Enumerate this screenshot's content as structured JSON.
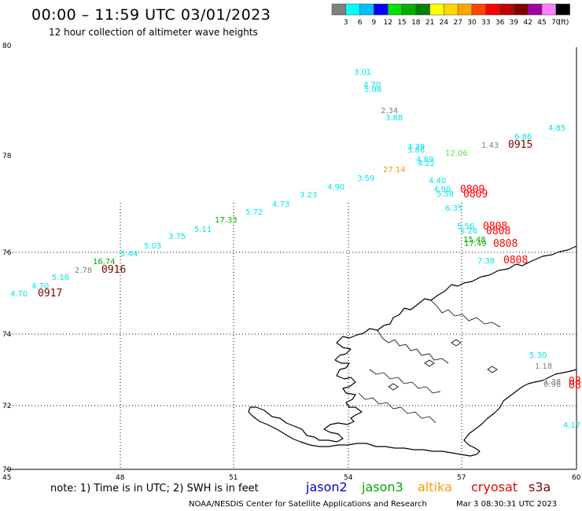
{
  "title": "00:00 – 11:59 UTC 03/01/2023",
  "subtitle": "12 hour collection of altimeter wave heights",
  "colorbar": {
    "labels": [
      "3",
      "6",
      "9",
      "12",
      "15",
      "18",
      "21",
      "24",
      "27",
      "30",
      "33",
      "36",
      "39",
      "42",
      "45",
      "70",
      "(ft)"
    ],
    "colors": [
      "#7f7f7f",
      "#00ffff",
      "#00bfff",
      "#0000ff",
      "#00e000",
      "#00b000",
      "#008000",
      "#ffff00",
      "#ffd700",
      "#ffa500",
      "#ff4500",
      "#ff0000",
      "#c00000",
      "#800000",
      "#a000a0",
      "#ff80ff",
      "#000000"
    ]
  },
  "axes": {
    "lon_labels": [
      "45",
      "48",
      "51",
      "54",
      "57",
      "60"
    ],
    "lat_labels": [
      "80",
      "78",
      "76",
      "74",
      "72",
      "70"
    ]
  },
  "wave_heights": [
    {
      "text": "3.01",
      "color": "#00e5ee"
    },
    {
      "text": "4.70",
      "color": "#00e5ee"
    },
    {
      "text": "5.08",
      "color": "#00e5ee"
    },
    {
      "text": "2.34",
      "color": "#808080"
    },
    {
      "text": "3.88",
      "color": "#00e5ee"
    },
    {
      "text": "4.85",
      "color": "#00e5ee"
    },
    {
      "text": "6.86",
      "color": "#00e5ee"
    },
    {
      "text": "1.43",
      "color": "#808080"
    },
    {
      "text": "3.39",
      "color": "#00e5ee"
    },
    {
      "text": "3.86",
      "color": "#00e5ee"
    },
    {
      "text": "4.89",
      "color": "#00e5ee"
    },
    {
      "text": "4.22",
      "color": "#00e5ee"
    },
    {
      "text": "12.06",
      "color": "#66dd44"
    },
    {
      "text": "27.14",
      "color": "#ff9900"
    },
    {
      "text": "4.40",
      "color": "#00e5ee"
    },
    {
      "text": "3.59",
      "color": "#00e5ee"
    },
    {
      "text": "4.90",
      "color": "#00e5ee"
    },
    {
      "text": "4.90",
      "color": "#00e5ee"
    },
    {
      "text": "5.58",
      "color": "#00e5ee"
    },
    {
      "text": "3.23",
      "color": "#00e5ee"
    },
    {
      "text": "4.73",
      "color": "#00e5ee"
    },
    {
      "text": "5.72",
      "color": "#00e5ee"
    },
    {
      "text": "6.35",
      "color": "#00e5ee"
    },
    {
      "text": "17.33",
      "color": "#00aa00"
    },
    {
      "text": "5.11",
      "color": "#00e5ee"
    },
    {
      "text": "3.75",
      "color": "#00e5ee"
    },
    {
      "text": "5.03",
      "color": "#00e5ee"
    },
    {
      "text": "5.56",
      "color": "#00e5ee"
    },
    {
      "text": "5.26",
      "color": "#00e5ee"
    },
    {
      "text": "15.48",
      "color": "#00aa00"
    },
    {
      "text": "17.49",
      "color": "#00aa00"
    },
    {
      "text": "5.44",
      "color": "#00e5ee"
    },
    {
      "text": "16.74",
      "color": "#00aa00"
    },
    {
      "text": "7.38",
      "color": "#00e5ee"
    },
    {
      "text": "2.78",
      "color": "#808080"
    },
    {
      "text": "5.16",
      "color": "#00e5ee"
    },
    {
      "text": "4.70",
      "color": "#00e5ee"
    },
    {
      "text": "4.70",
      "color": "#00e5ee"
    },
    {
      "text": "5.30",
      "color": "#00e5ee"
    },
    {
      "text": "1.18",
      "color": "#808080"
    },
    {
      "text": "1.38",
      "color": "#808080"
    },
    {
      "text": "0.98",
      "color": "#808080"
    },
    {
      "text": "4.17",
      "color": "#00e5ee"
    }
  ],
  "pass_times": [
    {
      "text": "0915",
      "color": "#800000"
    },
    {
      "text": "0809",
      "color": "#ff0000"
    },
    {
      "text": "0809",
      "color": "#ff0000"
    },
    {
      "text": "0808",
      "color": "#ff0000"
    },
    {
      "text": "0808",
      "color": "#ff0000"
    },
    {
      "text": "0808",
      "color": "#ff0000"
    },
    {
      "text": "0808",
      "color": "#ff0000"
    },
    {
      "text": "0916",
      "color": "#800000"
    },
    {
      "text": "0917",
      "color": "#800000"
    },
    {
      "text": "08",
      "color": "#ff0000"
    },
    {
      "text": "08",
      "color": "#ff0000"
    }
  ],
  "note": "note: 1) Time is in UTC; 2) SWH is in feet",
  "legend": [
    {
      "text": "jason2",
      "color": "#0000dd"
    },
    {
      "text": "jason3",
      "color": "#00aa00"
    },
    {
      "text": "altika",
      "color": "#ff9900"
    },
    {
      "text": "cryosat",
      "color": "#ee0000"
    },
    {
      "text": "s3a",
      "color": "#880000"
    }
  ],
  "credit": "NOAA/NESDIS Center for Satellite Applications and Research",
  "timestamp": "Mar  3 08:30:31 UTC 2023"
}
